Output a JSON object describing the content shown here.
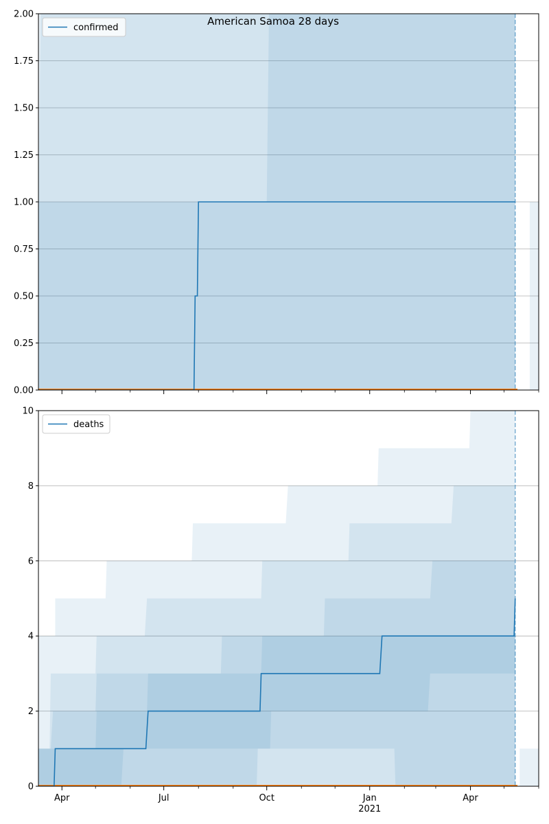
{
  "title": "American Samoa 28 days",
  "colors": {
    "line": "#1f77b4",
    "band": "#1f77b4",
    "forecast": "#ff7f0e",
    "grid": "#b0b0b0"
  },
  "chart_data": [
    {
      "type": "line",
      "legend": "confirmed",
      "legend_position": "top-left",
      "grid": "y",
      "ylim": [
        0,
        2
      ],
      "xlim": [
        "2020-03-11",
        "2021-06-01"
      ],
      "yticks": [
        {
          "value": 0,
          "label": "0.00"
        },
        {
          "value": 0.25,
          "label": "0.25"
        },
        {
          "value": 0.5,
          "label": "0.50"
        },
        {
          "value": 0.75,
          "label": "0.75"
        },
        {
          "value": 1.0,
          "label": "1.00"
        },
        {
          "value": 1.25,
          "label": "1.25"
        },
        {
          "value": 1.5,
          "label": "1.50"
        },
        {
          "value": 1.75,
          "label": "1.75"
        },
        {
          "value": 2.0,
          "label": "2.00"
        }
      ],
      "vline_date": "2021-05-11",
      "series": [
        {
          "name": "confirmed",
          "x": [
            "2020-03-11",
            "2020-07-28",
            "2020-07-29",
            "2020-07-31",
            "2020-08-01",
            "2021-05-11"
          ],
          "values": [
            0,
            0,
            0.5,
            0.5,
            1,
            1
          ]
        }
      ],
      "bands": [
        {
          "upper": [
            [
              "2020-03-11",
              2
            ],
            [
              "2021-05-11",
              2
            ]
          ],
          "lower": [
            [
              "2020-03-11",
              0
            ],
            [
              "2021-05-11",
              0
            ]
          ]
        },
        {
          "upper": [
            [
              "2020-03-11",
              1
            ],
            [
              "2020-03-13",
              2
            ],
            [
              "2021-05-11",
              2
            ]
          ],
          "lower": [
            [
              "2020-03-11",
              0
            ],
            [
              "2021-05-11",
              0
            ]
          ]
        },
        {
          "upper": [
            [
              "2020-03-11",
              1
            ],
            [
              "2020-10-01",
              1
            ],
            [
              "2020-10-03",
              2
            ],
            [
              "2021-05-11",
              2
            ]
          ],
          "lower": [
            [
              "2020-03-11",
              0
            ],
            [
              "2021-05-11",
              0
            ]
          ]
        },
        {
          "upper": [
            [
              "2021-05-24",
              1
            ],
            [
              "2021-06-01",
              1
            ]
          ],
          "lower": [
            [
              "2021-05-24",
              0
            ],
            [
              "2021-06-01",
              0
            ]
          ]
        }
      ],
      "forecast": {
        "x": [
          "2020-03-11",
          "2021-05-13"
        ],
        "values": [
          0,
          0
        ]
      }
    },
    {
      "type": "line",
      "legend": "deaths",
      "legend_position": "top-left",
      "grid": "y",
      "ylim": [
        0,
        10
      ],
      "xlim": [
        "2020-03-11",
        "2021-06-01"
      ],
      "yticks": [
        {
          "value": 0,
          "label": "0"
        },
        {
          "value": 2,
          "label": "2"
        },
        {
          "value": 4,
          "label": "4"
        },
        {
          "value": 6,
          "label": "6"
        },
        {
          "value": 8,
          "label": "8"
        },
        {
          "value": 10,
          "label": "10"
        }
      ],
      "xticks": [
        {
          "date": "2020-04-01",
          "label": "Apr",
          "sub": ""
        },
        {
          "date": "2020-07-01",
          "label": "Jul",
          "sub": ""
        },
        {
          "date": "2020-10-01",
          "label": "Oct",
          "sub": ""
        },
        {
          "date": "2021-01-01",
          "label": "Jan",
          "sub": "2021"
        },
        {
          "date": "2021-04-01",
          "label": "Apr",
          "sub": ""
        }
      ],
      "minor_ticks": [
        "2020-05-01",
        "2020-06-01",
        "2020-08-01",
        "2020-09-01",
        "2020-11-01",
        "2020-12-01",
        "2021-02-01",
        "2021-03-01",
        "2021-05-01",
        "2021-06-01"
      ],
      "vline_date": "2021-05-11",
      "series": [
        {
          "name": "deaths",
          "x": [
            "2020-03-11",
            "2020-03-25",
            "2020-03-26",
            "2020-06-15",
            "2020-06-17",
            "2020-09-25",
            "2020-09-26",
            "2021-01-10",
            "2021-01-12",
            "2021-05-10",
            "2021-05-11"
          ],
          "values": [
            0,
            0,
            1,
            1,
            2,
            2,
            3,
            3,
            4,
            4,
            5
          ]
        }
      ],
      "bands": [
        {
          "upper": [
            [
              "2020-03-11",
              4
            ],
            [
              "2020-03-26",
              4
            ],
            [
              "2020-03-26",
              5
            ],
            [
              "2020-05-10",
              5
            ],
            [
              "2020-05-11",
              6
            ],
            [
              "2020-07-26",
              6
            ],
            [
              "2020-07-27",
              7
            ],
            [
              "2020-10-18",
              7
            ],
            [
              "2020-10-20",
              8
            ],
            [
              "2020-12-20",
              8
            ],
            [
              "2021-01-08",
              8
            ],
            [
              "2021-01-09",
              9
            ],
            [
              "2021-03-31",
              9
            ],
            [
              "2021-04-01",
              10
            ],
            [
              "2021-05-11",
              10
            ]
          ],
          "lower": [
            [
              "2020-03-11",
              0
            ],
            [
              "2021-05-11",
              0
            ]
          ]
        },
        {
          "upper": [
            [
              "2020-03-11",
              1
            ],
            [
              "2020-03-21",
              1
            ],
            [
              "2020-03-22",
              3
            ],
            [
              "2020-05-01",
              3
            ],
            [
              "2020-05-02",
              4
            ],
            [
              "2020-06-14",
              4
            ],
            [
              "2020-06-16",
              5
            ],
            [
              "2020-09-26",
              5
            ],
            [
              "2020-09-27",
              6
            ],
            [
              "2020-12-13",
              6
            ],
            [
              "2020-12-14",
              7
            ],
            [
              "2021-03-15",
              7
            ],
            [
              "2021-03-17",
              8
            ],
            [
              "2021-05-11",
              8
            ]
          ],
          "lower": [
            [
              "2020-03-11",
              0
            ],
            [
              "2020-09-22",
              0
            ],
            [
              "2020-09-23",
              1
            ],
            [
              "2021-01-23",
              1
            ],
            [
              "2021-01-24",
              0
            ],
            [
              "2021-05-11",
              0
            ]
          ]
        },
        {
          "upper": [
            [
              "2020-03-11",
              1
            ],
            [
              "2020-03-22",
              1
            ],
            [
              "2020-03-24",
              2
            ],
            [
              "2020-05-01",
              2
            ],
            [
              "2020-05-02",
              3
            ],
            [
              "2020-08-21",
              3
            ],
            [
              "2020-08-22",
              4
            ],
            [
              "2020-11-21",
              4
            ],
            [
              "2020-11-22",
              5
            ],
            [
              "2021-02-24",
              5
            ],
            [
              "2021-02-26",
              6
            ],
            [
              "2021-05-11",
              6
            ]
          ],
          "lower": [
            [
              "2020-03-11",
              0
            ],
            [
              "2020-05-24",
              0
            ],
            [
              "2020-05-26",
              1
            ],
            [
              "2020-10-04",
              1
            ],
            [
              "2020-10-05",
              2
            ],
            [
              "2021-02-22",
              2
            ],
            [
              "2021-02-24",
              3
            ],
            [
              "2021-05-11",
              3
            ]
          ]
        },
        {
          "upper": [
            [
              "2020-03-11",
              1
            ],
            [
              "2020-05-01",
              1
            ],
            [
              "2020-05-02",
              2
            ],
            [
              "2020-06-16",
              2
            ],
            [
              "2020-06-17",
              3
            ],
            [
              "2020-09-26",
              3
            ],
            [
              "2020-09-27",
              4
            ],
            [
              "2021-05-11",
              4
            ]
          ],
          "lower": [
            [
              "2020-03-11",
              0
            ],
            [
              "2021-05-11",
              0
            ]
          ]
        },
        {
          "upper": [
            [
              "2021-05-15",
              1
            ],
            [
              "2021-06-01",
              1
            ]
          ],
          "lower": [
            [
              "2021-05-15",
              0
            ],
            [
              "2021-06-01",
              0
            ]
          ]
        }
      ],
      "forecast": {
        "x": [
          "2020-03-11",
          "2021-05-13"
        ],
        "values": [
          0,
          0
        ]
      }
    }
  ]
}
